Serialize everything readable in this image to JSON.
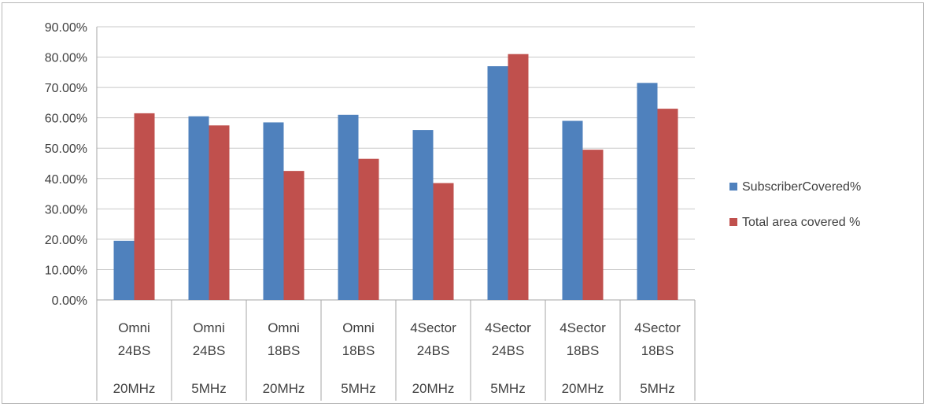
{
  "chart_data": {
    "type": "bar",
    "title": "",
    "xlabel": "",
    "ylabel": "",
    "ylim": [
      0,
      0.9
    ],
    "y_ticks": [
      "0.00%",
      "10.00%",
      "20.00%",
      "30.00%",
      "40.00%",
      "50.00%",
      "60.00%",
      "70.00%",
      "80.00%",
      "90.00%"
    ],
    "grid": true,
    "legend_position": "right",
    "categories": [
      {
        "line1": "Omni",
        "line2": "24BS",
        "line3": "20MHz"
      },
      {
        "line1": "Omni",
        "line2": "24BS",
        "line3": "5MHz"
      },
      {
        "line1": "Omni",
        "line2": "18BS",
        "line3": "20MHz"
      },
      {
        "line1": "Omni",
        "line2": "18BS",
        "line3": "5MHz"
      },
      {
        "line1": "4Sector",
        "line2": "24BS",
        "line3": "20MHz"
      },
      {
        "line1": "4Sector",
        "line2": "24BS",
        "line3": "5MHz"
      },
      {
        "line1": "4Sector",
        "line2": "18BS",
        "line3": "20MHz"
      },
      {
        "line1": "4Sector",
        "line2": "18BS",
        "line3": "5MHz"
      }
    ],
    "series": [
      {
        "name": "SubscriberCovered%",
        "color": "#4f81bd",
        "values": [
          0.195,
          0.605,
          0.585,
          0.61,
          0.56,
          0.77,
          0.59,
          0.715
        ]
      },
      {
        "name": "Total area covered %",
        "color": "#c0504d",
        "values": [
          0.615,
          0.575,
          0.425,
          0.465,
          0.385,
          0.81,
          0.495,
          0.63
        ]
      }
    ]
  }
}
